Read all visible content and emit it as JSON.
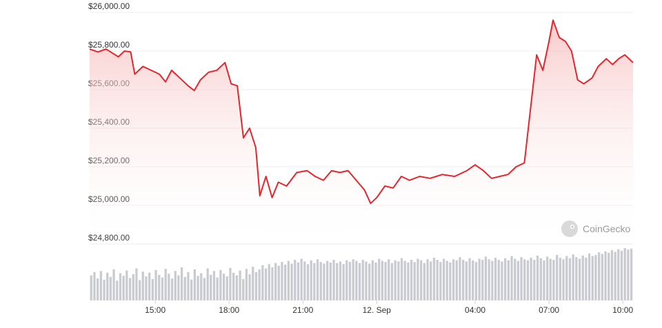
{
  "watermark": "CoinGecko",
  "colors": {
    "line": "#e5252a",
    "area_top": "#f7b9b9",
    "volume": "#c9cbd1",
    "grid": "#ececec",
    "axis_text": "#333333"
  },
  "chart_data": [
    {
      "type": "area",
      "ylim": [
        24800,
        26000
      ],
      "grid": true,
      "y_ticks": [
        24800,
        25000,
        25200,
        25400,
        25600,
        25800,
        26000
      ],
      "y_tick_labels": [
        "$24,800.00",
        "$25,000.00",
        "$25,200.00",
        "$25,400.00",
        "$25,600.00",
        "$25,800.00",
        "$26,000.00"
      ],
      "x_tick_labels": [
        "15:00",
        "18:00",
        "21:00",
        "12. Sep",
        "04:00",
        "07:00",
        "10:00"
      ],
      "x_start": "11 Sep 12:20",
      "x_end": "12 Sep 10:25",
      "x_ticks_at": [
        "11 Sep 15:00",
        "11 Sep 18:00",
        "11 Sep 21:00",
        "12 Sep 00:00",
        "12 Sep 04:00",
        "12 Sep 07:00",
        "12 Sep 10:00"
      ],
      "series": [
        {
          "points": [
            [
              "11 Sep 12:20",
              25810
            ],
            [
              "11 Sep 12:40",
              25795
            ],
            [
              "11 Sep 13:00",
              25810
            ],
            [
              "11 Sep 13:15",
              25790
            ],
            [
              "11 Sep 13:30",
              25770
            ],
            [
              "11 Sep 13:45",
              25800
            ],
            [
              "11 Sep 14:00",
              25795
            ],
            [
              "11 Sep 14:10",
              25680
            ],
            [
              "11 Sep 14:30",
              25720
            ],
            [
              "11 Sep 14:50",
              25700
            ],
            [
              "11 Sep 15:10",
              25680
            ],
            [
              "11 Sep 15:25",
              25640
            ],
            [
              "11 Sep 15:40",
              25700
            ],
            [
              "11 Sep 16:00",
              25660
            ],
            [
              "11 Sep 16:20",
              25620
            ],
            [
              "11 Sep 16:35",
              25595
            ],
            [
              "11 Sep 16:50",
              25650
            ],
            [
              "11 Sep 17:10",
              25690
            ],
            [
              "11 Sep 17:30",
              25700
            ],
            [
              "11 Sep 17:50",
              25740
            ],
            [
              "11 Sep 18:05",
              25630
            ],
            [
              "11 Sep 18:20",
              25620
            ],
            [
              "11 Sep 18:35",
              25350
            ],
            [
              "11 Sep 18:50",
              25400
            ],
            [
              "11 Sep 19:05",
              25300
            ],
            [
              "11 Sep 19:15",
              25050
            ],
            [
              "11 Sep 19:30",
              25150
            ],
            [
              "11 Sep 19:45",
              25040
            ],
            [
              "11 Sep 20:00",
              25120
            ],
            [
              "11 Sep 20:20",
              25100
            ],
            [
              "11 Sep 20:45",
              25170
            ],
            [
              "11 Sep 21:10",
              25180
            ],
            [
              "11 Sep 21:30",
              25150
            ],
            [
              "11 Sep 21:50",
              25130
            ],
            [
              "11 Sep 22:10",
              25180
            ],
            [
              "11 Sep 22:30",
              25170
            ],
            [
              "11 Sep 22:50",
              25180
            ],
            [
              "11 Sep 23:10",
              25130
            ],
            [
              "11 Sep 23:30",
              25080
            ],
            [
              "11 Sep 23:45",
              25010
            ],
            [
              "12 Sep 00:00",
              25040
            ],
            [
              "12 Sep 00:20",
              25100
            ],
            [
              "12 Sep 00:40",
              25090
            ],
            [
              "12 Sep 01:00",
              25150
            ],
            [
              "12 Sep 01:20",
              25130
            ],
            [
              "12 Sep 01:45",
              25150
            ],
            [
              "12 Sep 02:10",
              25140
            ],
            [
              "12 Sep 02:40",
              25160
            ],
            [
              "12 Sep 03:10",
              25150
            ],
            [
              "12 Sep 03:40",
              25180
            ],
            [
              "12 Sep 04:00",
              25210
            ],
            [
              "12 Sep 04:20",
              25180
            ],
            [
              "12 Sep 04:40",
              25140
            ],
            [
              "12 Sep 05:00",
              25150
            ],
            [
              "12 Sep 05:20",
              25160
            ],
            [
              "12 Sep 05:40",
              25200
            ],
            [
              "12 Sep 06:00",
              25220
            ],
            [
              "12 Sep 06:15",
              25500
            ],
            [
              "12 Sep 06:30",
              25780
            ],
            [
              "12 Sep 06:45",
              25700
            ],
            [
              "12 Sep 07:00",
              25850
            ],
            [
              "12 Sep 07:10",
              25960
            ],
            [
              "12 Sep 07:25",
              25870
            ],
            [
              "12 Sep 07:40",
              25850
            ],
            [
              "12 Sep 07:55",
              25800
            ],
            [
              "12 Sep 08:10",
              25650
            ],
            [
              "12 Sep 08:25",
              25630
            ],
            [
              "12 Sep 08:45",
              25660
            ],
            [
              "12 Sep 09:00",
              25720
            ],
            [
              "12 Sep 09:20",
              25760
            ],
            [
              "12 Sep 09:35",
              25730
            ],
            [
              "12 Sep 09:50",
              25760
            ],
            [
              "12 Sep 10:05",
              25780
            ],
            [
              "12 Sep 10:25",
              25740
            ]
          ]
        }
      ]
    },
    {
      "type": "bar",
      "title": "",
      "values": [
        0.47,
        0.53,
        0.41,
        0.55,
        0.39,
        0.52,
        0.44,
        0.58,
        0.37,
        0.51,
        0.46,
        0.56,
        0.42,
        0.49,
        0.6,
        0.38,
        0.54,
        0.45,
        0.52,
        0.4,
        0.57,
        0.48,
        0.43,
        0.59,
        0.5,
        0.41,
        0.55,
        0.47,
        0.62,
        0.44,
        0.53,
        0.39,
        0.58,
        0.46,
        0.51,
        0.42,
        0.6,
        0.48,
        0.55,
        0.43,
        0.57,
        0.5,
        0.45,
        0.61,
        0.52,
        0.47,
        0.56,
        0.4,
        0.59,
        0.49,
        0.63,
        0.53,
        0.58,
        0.66,
        0.6,
        0.68,
        0.62,
        0.7,
        0.65,
        0.72,
        0.67,
        0.74,
        0.69,
        0.76,
        0.71,
        0.78,
        0.73,
        0.68,
        0.75,
        0.7,
        0.77,
        0.72,
        0.69,
        0.74,
        0.71,
        0.76,
        0.7,
        0.73,
        0.68,
        0.75,
        0.72,
        0.77,
        0.74,
        0.7,
        0.76,
        0.73,
        0.69,
        0.75,
        0.71,
        0.78,
        0.74,
        0.72,
        0.77,
        0.7,
        0.75,
        0.73,
        0.79,
        0.74,
        0.71,
        0.76,
        0.72,
        0.78,
        0.75,
        0.7,
        0.77,
        0.73,
        0.8,
        0.76,
        0.72,
        0.78,
        0.74,
        0.71,
        0.77,
        0.75,
        0.81,
        0.76,
        0.73,
        0.79,
        0.75,
        0.72,
        0.78,
        0.76,
        0.82,
        0.77,
        0.74,
        0.8,
        0.76,
        0.73,
        0.79,
        0.75,
        0.83,
        0.78,
        0.74,
        0.81,
        0.77,
        0.75,
        0.8,
        0.76,
        0.84,
        0.79,
        0.75,
        0.82,
        0.78,
        0.76,
        0.85,
        0.8,
        0.77,
        0.83,
        0.79,
        0.86,
        0.81,
        0.78,
        0.84,
        0.8,
        0.88,
        0.83,
        0.85,
        0.9,
        0.87,
        0.92,
        0.89,
        0.94,
        0.91,
        0.96,
        0.93,
        0.98,
        0.95,
        0.97
      ]
    }
  ]
}
